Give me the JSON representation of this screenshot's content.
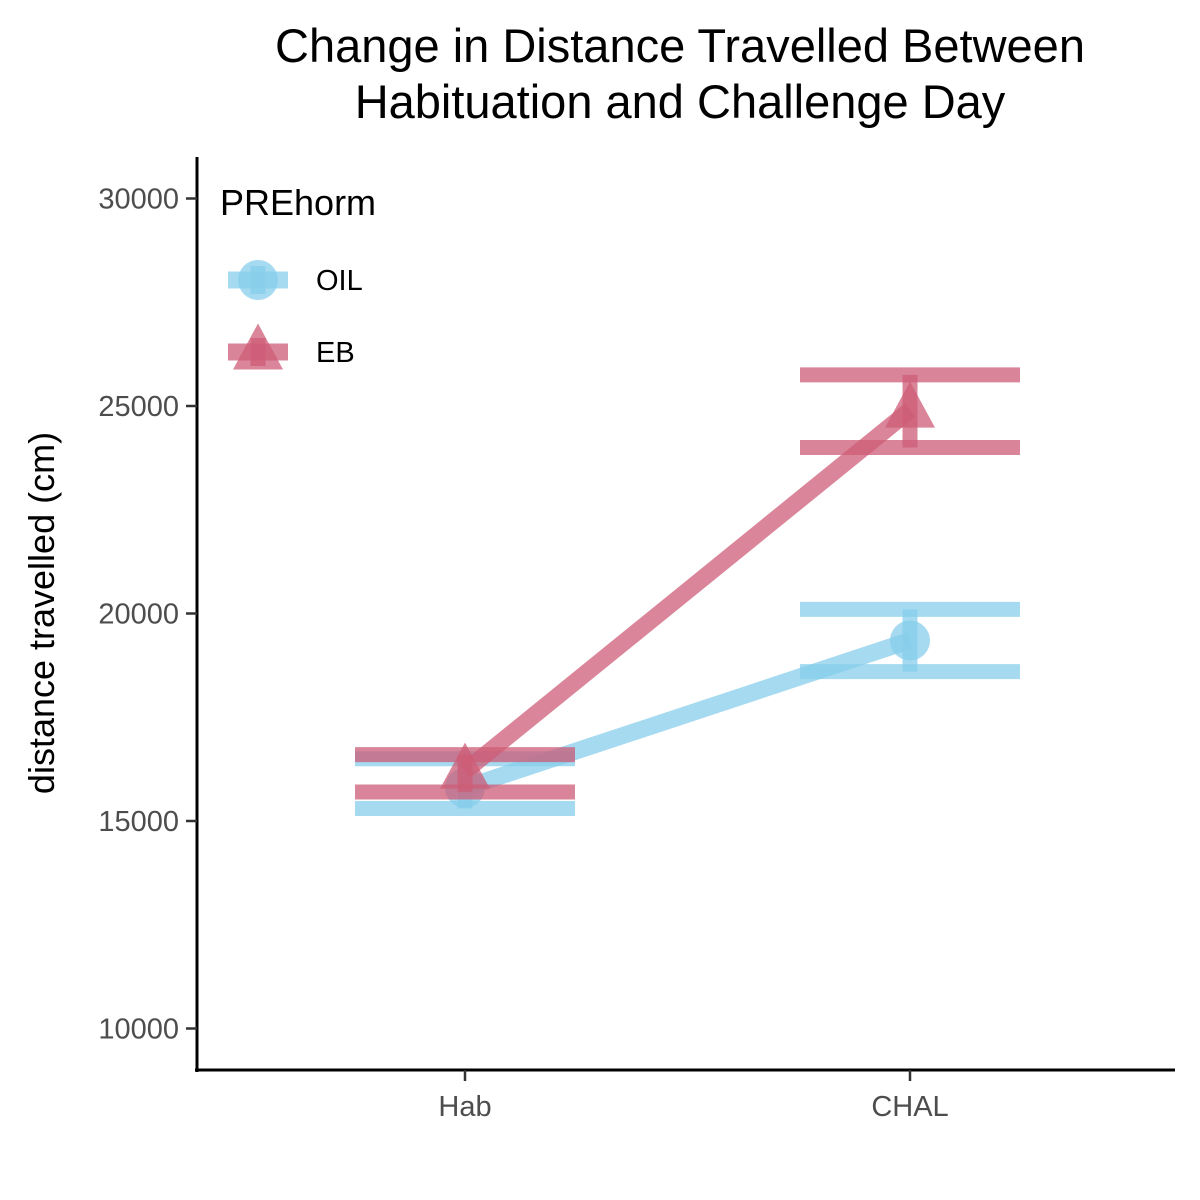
{
  "chart_data": {
    "type": "line",
    "title_lines": [
      "Change in Distance Travelled Between",
      "Habituation and Challenge Day"
    ],
    "xlabel": "",
    "ylabel": "distance travelled (cm)",
    "categories": [
      "Hab",
      "CHAL"
    ],
    "ylim": [
      9000,
      31000
    ],
    "yticks": [
      10000,
      15000,
      20000,
      25000,
      30000
    ],
    "legend": {
      "title": "PREhorm",
      "position": "top-left"
    },
    "series": [
      {
        "name": "OIL",
        "marker": "circle",
        "color": "#87CEEB",
        "values": [
          15800,
          19350
        ],
        "error_low": [
          15300,
          18600
        ],
        "error_high": [
          16500,
          20100
        ]
      },
      {
        "name": "EB",
        "marker": "triangle",
        "color": "#CD5C77",
        "values": [
          16200,
          24900
        ],
        "error_low": [
          15700,
          24000
        ],
        "error_high": [
          16600,
          25750
        ]
      }
    ]
  }
}
